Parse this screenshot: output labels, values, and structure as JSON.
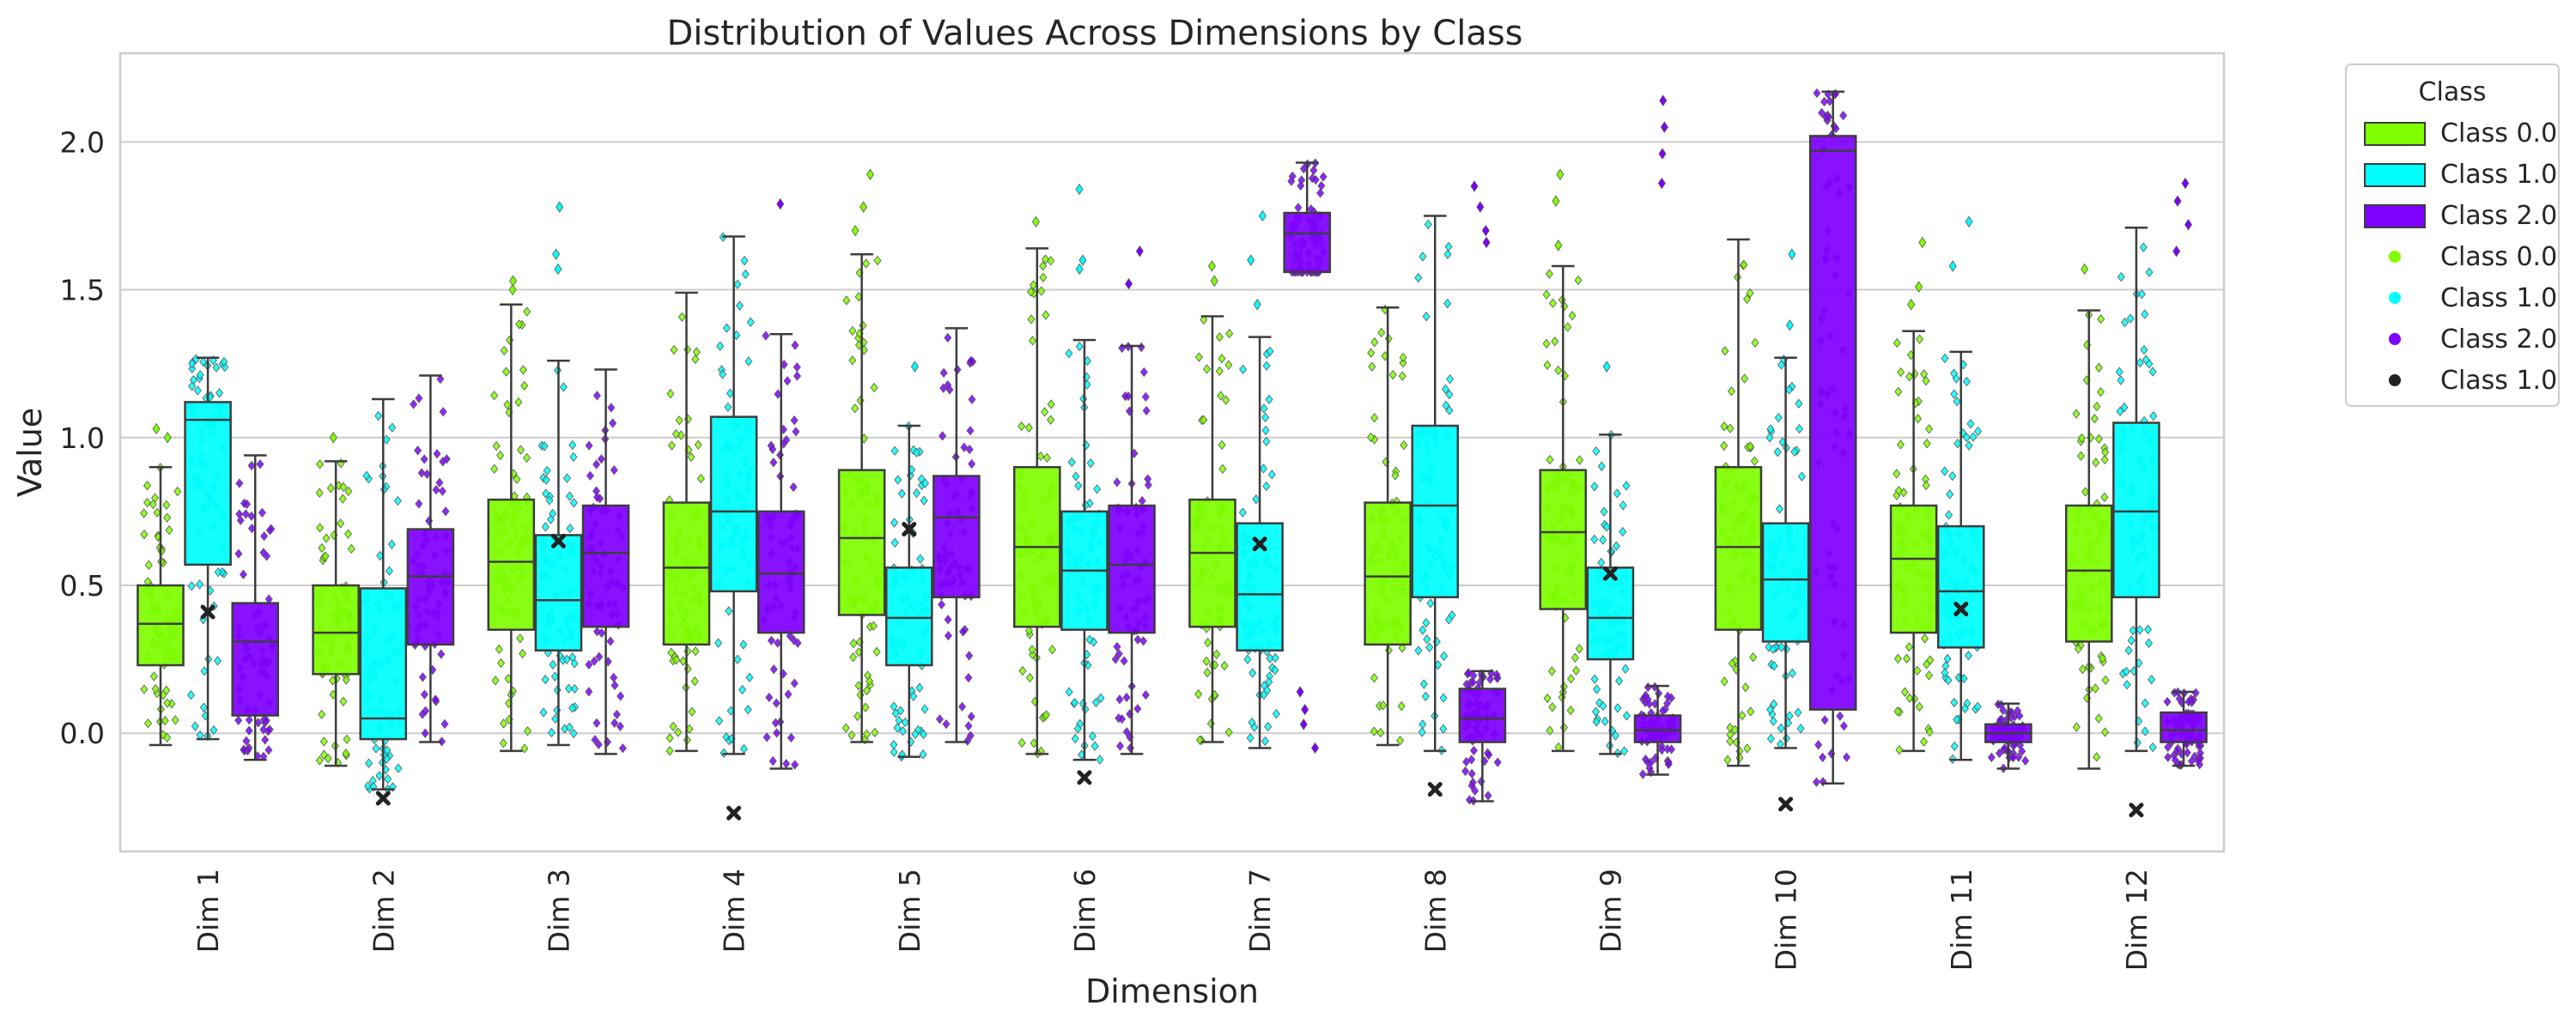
{
  "chart_data": {
    "type": "box",
    "title": "Distribution of Values Across Dimensions by Class",
    "xlabel": "Dimension",
    "ylabel": "Value",
    "ylim": [
      -0.4,
      2.3
    ],
    "yticks": [
      0.0,
      0.5,
      1.0,
      1.5,
      2.0
    ],
    "ytick_labels": [
      "0.0",
      "0.5",
      "1.0",
      "1.5",
      "2.0"
    ],
    "grid": "horizontal",
    "categories": [
      "Dim 1",
      "Dim 2",
      "Dim 3",
      "Dim 4",
      "Dim 5",
      "Dim 6",
      "Dim 7",
      "Dim 8",
      "Dim 9",
      "Dim 10",
      "Dim 11",
      "Dim 12"
    ],
    "legend": {
      "title": "Class",
      "position": "outside-top-right",
      "box_entries": [
        {
          "label": "Class 0.0",
          "color": "#7fff00"
        },
        {
          "label": "Class 1.0",
          "color": "#00ffff"
        },
        {
          "label": "Class 2.0",
          "color": "#7f00ff"
        }
      ],
      "point_entries": [
        {
          "label": "Class 0.0",
          "color": "#7fff00"
        },
        {
          "label": "Class 1.0",
          "color": "#00ffff"
        },
        {
          "label": "Class 2.0",
          "color": "#7f00ff"
        },
        {
          "label": "Class 1.0",
          "color": "#222222"
        }
      ]
    },
    "series": [
      {
        "name": "Class 0.0",
        "color": "#7fff00",
        "boxes": [
          {
            "whislo": -0.04,
            "q1": 0.23,
            "med": 0.37,
            "q3": 0.5,
            "whishi": 0.9
          },
          {
            "whislo": -0.11,
            "q1": 0.2,
            "med": 0.34,
            "q3": 0.5,
            "whishi": 0.92
          },
          {
            "whislo": -0.06,
            "q1": 0.35,
            "med": 0.58,
            "q3": 0.79,
            "whishi": 1.45
          },
          {
            "whislo": -0.06,
            "q1": 0.3,
            "med": 0.56,
            "q3": 0.78,
            "whishi": 1.49
          },
          {
            "whislo": -0.03,
            "q1": 0.4,
            "med": 0.66,
            "q3": 0.89,
            "whishi": 1.62
          },
          {
            "whislo": -0.07,
            "q1": 0.36,
            "med": 0.63,
            "q3": 0.9,
            "whishi": 1.64
          },
          {
            "whislo": -0.03,
            "q1": 0.36,
            "med": 0.61,
            "q3": 0.79,
            "whishi": 1.41
          },
          {
            "whislo": -0.04,
            "q1": 0.3,
            "med": 0.53,
            "q3": 0.78,
            "whishi": 1.44
          },
          {
            "whislo": -0.06,
            "q1": 0.42,
            "med": 0.68,
            "q3": 0.89,
            "whishi": 1.58
          },
          {
            "whislo": -0.11,
            "q1": 0.35,
            "med": 0.63,
            "q3": 0.9,
            "whishi": 1.67
          },
          {
            "whislo": -0.06,
            "q1": 0.34,
            "med": 0.59,
            "q3": 0.77,
            "whishi": 1.36
          },
          {
            "whislo": -0.12,
            "q1": 0.31,
            "med": 0.55,
            "q3": 0.77,
            "whishi": 1.43
          }
        ],
        "fliers": [
          [
            1.0,
            1.03
          ],
          [
            1.0
          ],
          [
            1.5,
            1.53
          ],
          [],
          [
            1.7,
            1.78,
            1.89
          ],
          [
            1.73
          ],
          [
            1.53,
            1.58
          ],
          [],
          [
            1.65,
            1.8,
            1.89
          ],
          [],
          [
            1.45,
            1.51,
            1.66
          ],
          [
            1.57
          ]
        ]
      },
      {
        "name": "Class 1.0",
        "color": "#00ffff",
        "boxes": [
          {
            "whislo": -0.02,
            "q1": 0.57,
            "med": 1.06,
            "q3": 1.12,
            "whishi": 1.27
          },
          {
            "whislo": -0.19,
            "q1": -0.02,
            "med": 0.05,
            "q3": 0.49,
            "whishi": 1.13
          },
          {
            "whislo": -0.04,
            "q1": 0.28,
            "med": 0.45,
            "q3": 0.67,
            "whishi": 1.26
          },
          {
            "whislo": -0.07,
            "q1": 0.48,
            "med": 0.75,
            "q3": 1.07,
            "whishi": 1.68
          },
          {
            "whislo": -0.08,
            "q1": 0.23,
            "med": 0.39,
            "q3": 0.56,
            "whishi": 1.04
          },
          {
            "whislo": -0.09,
            "q1": 0.35,
            "med": 0.55,
            "q3": 0.75,
            "whishi": 1.33
          },
          {
            "whislo": -0.05,
            "q1": 0.28,
            "med": 0.47,
            "q3": 0.71,
            "whishi": 1.34
          },
          {
            "whislo": -0.06,
            "q1": 0.46,
            "med": 0.77,
            "q3": 1.04,
            "whishi": 1.75
          },
          {
            "whislo": -0.07,
            "q1": 0.25,
            "med": 0.39,
            "q3": 0.56,
            "whishi": 1.01
          },
          {
            "whislo": -0.05,
            "q1": 0.31,
            "med": 0.52,
            "q3": 0.71,
            "whishi": 1.27
          },
          {
            "whislo": -0.09,
            "q1": 0.29,
            "med": 0.48,
            "q3": 0.7,
            "whishi": 1.29
          },
          {
            "whislo": -0.06,
            "q1": 0.46,
            "med": 0.75,
            "q3": 1.05,
            "whishi": 1.71
          }
        ],
        "fliers": [
          [],
          [],
          [
            1.57,
            1.62,
            1.78
          ],
          [],
          [
            1.24
          ],
          [
            1.57,
            1.6,
            1.84
          ],
          [
            1.45,
            1.6,
            1.75
          ],
          [],
          [
            1.24
          ],
          [
            1.38,
            1.62
          ],
          [
            1.73,
            1.58
          ],
          []
        ]
      },
      {
        "name": "Class 2.0",
        "color": "#7f00ff",
        "boxes": [
          {
            "whislo": -0.09,
            "q1": 0.06,
            "med": 0.31,
            "q3": 0.44,
            "whishi": 0.94
          },
          {
            "whislo": -0.03,
            "q1": 0.3,
            "med": 0.53,
            "q3": 0.69,
            "whishi": 1.21
          },
          {
            "whislo": -0.07,
            "q1": 0.36,
            "med": 0.61,
            "q3": 0.77,
            "whishi": 1.23
          },
          {
            "whislo": -0.12,
            "q1": 0.34,
            "med": 0.54,
            "q3": 0.75,
            "whishi": 1.35
          },
          {
            "whislo": -0.03,
            "q1": 0.46,
            "med": 0.73,
            "q3": 0.87,
            "whishi": 1.37
          },
          {
            "whislo": -0.07,
            "q1": 0.34,
            "med": 0.57,
            "q3": 0.77,
            "whishi": 1.31
          },
          {
            "whislo": 1.56,
            "q1": 1.56,
            "med": 1.69,
            "q3": 1.76,
            "whishi": 1.93
          },
          {
            "whislo": -0.23,
            "q1": -0.03,
            "med": 0.05,
            "q3": 0.15,
            "whishi": 0.21
          },
          {
            "whislo": -0.14,
            "q1": -0.03,
            "med": 0.01,
            "q3": 0.06,
            "whishi": 0.16
          },
          {
            "whislo": -0.17,
            "q1": 0.08,
            "med": 1.97,
            "q3": 2.02,
            "whishi": 2.17
          },
          {
            "whislo": -0.12,
            "q1": -0.03,
            "med": 0.0,
            "q3": 0.03,
            "whishi": 0.1
          },
          {
            "whislo": -0.11,
            "q1": -0.03,
            "med": 0.01,
            "q3": 0.07,
            "whishi": 0.14
          }
        ],
        "fliers": [
          [],
          [],
          [],
          [
            1.79
          ],
          [],
          [
            1.52,
            1.63
          ],
          [
            0.14,
            0.08,
            0.03,
            -0.05
          ],
          [
            1.85,
            1.78,
            1.7,
            1.66
          ],
          [
            2.14,
            2.05,
            1.96,
            1.86
          ],
          [],
          [],
          [
            1.86,
            1.8,
            1.72,
            1.63
          ]
        ]
      }
    ],
    "markers": {
      "label": "Class 1.0",
      "color": "#222222",
      "points": [
        {
          "dim": 0,
          "value": 0.41
        },
        {
          "dim": 1,
          "value": -0.22
        },
        {
          "dim": 2,
          "value": 0.65
        },
        {
          "dim": 3,
          "value": -0.27
        },
        {
          "dim": 4,
          "value": 0.69
        },
        {
          "dim": 5,
          "value": -0.15
        },
        {
          "dim": 6,
          "value": 0.64
        },
        {
          "dim": 7,
          "value": -0.19
        },
        {
          "dim": 8,
          "value": 0.54
        },
        {
          "dim": 9,
          "value": -0.24
        },
        {
          "dim": 10,
          "value": 0.42
        },
        {
          "dim": 11,
          "value": -0.26
        }
      ]
    }
  }
}
